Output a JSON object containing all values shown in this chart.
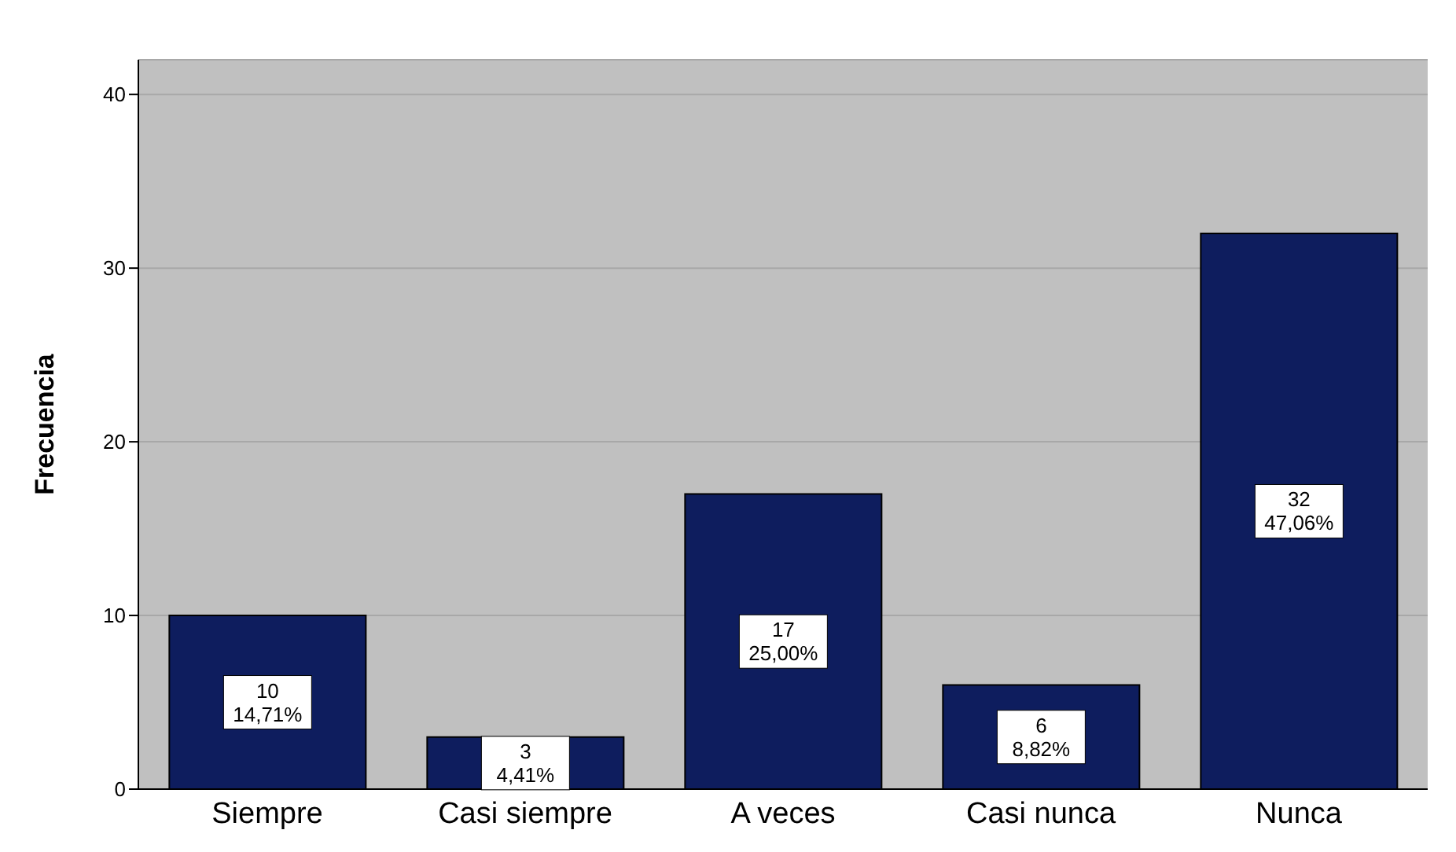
{
  "chart_data": {
    "type": "bar",
    "ylabel": "Frecuencia",
    "categories": [
      "Siempre",
      "Casi siempre",
      "A veces",
      "Casi nunca",
      "Nunca"
    ],
    "values": [
      10,
      3,
      17,
      6,
      32
    ],
    "value_labels": [
      "10\n14,71%",
      "3\n4,41%",
      "17\n25,00%",
      "6\n8,82%",
      "32\n47,06%"
    ],
    "color": "#0e1d5e",
    "ylim": [
      0,
      42
    ],
    "yticks": [
      0,
      10,
      20,
      30,
      40
    ],
    "grid": "y"
  }
}
